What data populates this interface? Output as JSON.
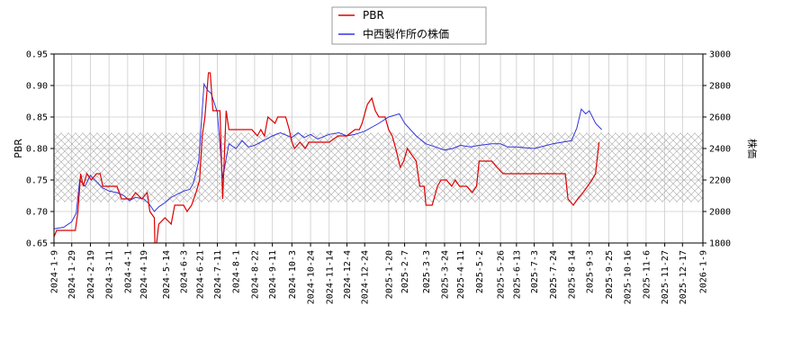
{
  "chart_data": {
    "type": "line",
    "legend_position": "top-center",
    "grid": true,
    "hatched_band": {
      "left_axis": [
        0.715,
        0.825
      ]
    },
    "left_axis": {
      "label": "PBR",
      "ylim": [
        0.65,
        0.95
      ],
      "ticks": [
        "0.65",
        "0.70",
        "0.75",
        "0.80",
        "0.85",
        "0.90",
        "0.95"
      ]
    },
    "right_axis": {
      "label": "株価",
      "ylim": [
        1800,
        3000
      ],
      "ticks": [
        "1800",
        "2000",
        "2200",
        "2400",
        "2600",
        "2800",
        "3000"
      ]
    },
    "x_axis": {
      "range": [
        "2024-01-09",
        "2026-01-09"
      ],
      "ticks": [
        "2024-1-9",
        "2024-1-29",
        "2024-2-19",
        "2024-3-11",
        "2024-4-1",
        "2024-4-19",
        "2024-5-14",
        "2024-6-3",
        "2024-6-21",
        "2024-7-11",
        "2024-8-1",
        "2024-8-22",
        "2024-9-11",
        "2024-10-3",
        "2024-10-24",
        "2024-11-14",
        "2024-12-4",
        "2024-12-24",
        "2025-1-20",
        "2025-2-7",
        "2025-3-3",
        "2025-3-24",
        "2025-4-11",
        "2025-5-2",
        "2025-5-26",
        "2025-6-13",
        "2025-7-3",
        "2025-7-24",
        "2025-8-14",
        "2025-9-3",
        "2025-9-25",
        "2025-10-16",
        "2025-11-6",
        "2025-11-27",
        "2025-12-17",
        "2026-1-9"
      ]
    },
    "series": [
      {
        "name": "PBR",
        "axis": "left",
        "color": "#dd0000",
        "points": [
          [
            "2024-01-09",
            0.66
          ],
          [
            "2024-01-12",
            0.67
          ],
          [
            "2024-01-20",
            0.67
          ],
          [
            "2024-02-02",
            0.67
          ],
          [
            "2024-02-05",
            0.7
          ],
          [
            "2024-02-08",
            0.76
          ],
          [
            "2024-02-11",
            0.74
          ],
          [
            "2024-02-15",
            0.76
          ],
          [
            "2024-02-20",
            0.75
          ],
          [
            "2024-02-26",
            0.76
          ],
          [
            "2024-03-01",
            0.76
          ],
          [
            "2024-03-04",
            0.74
          ],
          [
            "2024-03-12",
            0.74
          ],
          [
            "2024-03-20",
            0.74
          ],
          [
            "2024-03-25",
            0.72
          ],
          [
            "2024-04-01",
            0.72
          ],
          [
            "2024-04-05",
            0.72
          ],
          [
            "2024-04-10",
            0.73
          ],
          [
            "2024-04-17",
            0.72
          ],
          [
            "2024-04-23",
            0.73
          ],
          [
            "2024-04-26",
            0.7
          ],
          [
            "2024-05-01",
            0.69
          ],
          [
            "2024-05-02",
            0.63
          ],
          [
            "2024-05-06",
            0.68
          ],
          [
            "2024-05-13",
            0.69
          ],
          [
            "2024-05-20",
            0.68
          ],
          [
            "2024-05-24",
            0.71
          ],
          [
            "2024-06-03",
            0.71
          ],
          [
            "2024-06-07",
            0.7
          ],
          [
            "2024-06-12",
            0.71
          ],
          [
            "2024-06-17",
            0.73
          ],
          [
            "2024-06-21",
            0.75
          ],
          [
            "2024-06-24",
            0.82
          ],
          [
            "2024-06-27",
            0.85
          ],
          [
            "2024-07-01",
            0.92
          ],
          [
            "2024-07-03",
            0.92
          ],
          [
            "2024-07-06",
            0.86
          ],
          [
            "2024-07-14",
            0.86
          ],
          [
            "2024-07-17",
            0.72
          ],
          [
            "2024-07-21",
            0.86
          ],
          [
            "2024-07-24",
            0.83
          ],
          [
            "2024-08-05",
            0.83
          ],
          [
            "2024-08-19",
            0.83
          ],
          [
            "2024-08-25",
            0.82
          ],
          [
            "2024-08-29",
            0.83
          ],
          [
            "2024-09-02",
            0.82
          ],
          [
            "2024-09-06",
            0.85
          ],
          [
            "2024-09-14",
            0.84
          ],
          [
            "2024-09-17",
            0.85
          ],
          [
            "2024-09-26",
            0.85
          ],
          [
            "2024-09-30",
            0.83
          ],
          [
            "2024-10-03",
            0.81
          ],
          [
            "2024-10-06",
            0.8
          ],
          [
            "2024-10-12",
            0.81
          ],
          [
            "2024-10-18",
            0.8
          ],
          [
            "2024-10-22",
            0.81
          ],
          [
            "2024-10-30",
            0.81
          ],
          [
            "2024-11-14",
            0.81
          ],
          [
            "2024-11-24",
            0.82
          ],
          [
            "2024-12-04",
            0.82
          ],
          [
            "2024-12-13",
            0.83
          ],
          [
            "2024-12-18",
            0.83
          ],
          [
            "2024-12-21",
            0.84
          ],
          [
            "2024-12-27",
            0.87
          ],
          [
            "2025-01-01",
            0.88
          ],
          [
            "2025-01-05",
            0.86
          ],
          [
            "2025-01-09",
            0.85
          ],
          [
            "2025-01-16",
            0.85
          ],
          [
            "2025-01-20",
            0.83
          ],
          [
            "2025-01-24",
            0.82
          ],
          [
            "2025-01-28",
            0.8
          ],
          [
            "2025-02-02",
            0.77
          ],
          [
            "2025-02-06",
            0.78
          ],
          [
            "2025-02-10",
            0.8
          ],
          [
            "2025-02-15",
            0.79
          ],
          [
            "2025-02-20",
            0.78
          ],
          [
            "2025-02-24",
            0.74
          ],
          [
            "2025-03-01",
            0.74
          ],
          [
            "2025-03-03",
            0.71
          ],
          [
            "2025-03-10",
            0.71
          ],
          [
            "2025-03-16",
            0.74
          ],
          [
            "2025-03-20",
            0.75
          ],
          [
            "2025-03-26",
            0.75
          ],
          [
            "2025-04-01",
            0.74
          ],
          [
            "2025-04-05",
            0.75
          ],
          [
            "2025-04-10",
            0.74
          ],
          [
            "2025-04-18",
            0.74
          ],
          [
            "2025-04-24",
            0.73
          ],
          [
            "2025-04-29",
            0.74
          ],
          [
            "2025-05-02",
            0.78
          ],
          [
            "2025-05-16",
            0.78
          ],
          [
            "2025-05-22",
            0.77
          ],
          [
            "2025-05-29",
            0.76
          ],
          [
            "2025-06-13",
            0.76
          ],
          [
            "2025-07-03",
            0.76
          ],
          [
            "2025-07-24",
            0.76
          ],
          [
            "2025-08-07",
            0.76
          ],
          [
            "2025-08-10",
            0.72
          ],
          [
            "2025-08-16",
            0.71
          ],
          [
            "2025-08-21",
            0.72
          ],
          [
            "2025-08-27",
            0.73
          ],
          [
            "2025-09-01",
            0.74
          ],
          [
            "2025-09-06",
            0.75
          ],
          [
            "2025-09-10",
            0.76
          ],
          [
            "2025-09-14",
            0.81
          ]
        ]
      },
      {
        "name": "中西製作所の株価",
        "axis": "right",
        "color": "#3333dd",
        "points": [
          [
            "2024-01-09",
            1890
          ],
          [
            "2024-01-20",
            1900
          ],
          [
            "2024-01-29",
            1935
          ],
          [
            "2024-02-03",
            1990
          ],
          [
            "2024-02-07",
            2200
          ],
          [
            "2024-02-13",
            2160
          ],
          [
            "2024-02-19",
            2230
          ],
          [
            "2024-02-26",
            2190
          ],
          [
            "2024-03-04",
            2150
          ],
          [
            "2024-03-11",
            2130
          ],
          [
            "2024-03-20",
            2120
          ],
          [
            "2024-03-28",
            2100
          ],
          [
            "2024-04-03",
            2070
          ],
          [
            "2024-04-10",
            2090
          ],
          [
            "2024-04-19",
            2080
          ],
          [
            "2024-04-25",
            2050
          ],
          [
            "2024-05-01",
            2000
          ],
          [
            "2024-05-06",
            2030
          ],
          [
            "2024-05-14",
            2060
          ],
          [
            "2024-05-20",
            2090
          ],
          [
            "2024-05-27",
            2110
          ],
          [
            "2024-06-03",
            2130
          ],
          [
            "2024-06-10",
            2140
          ],
          [
            "2024-06-14",
            2180
          ],
          [
            "2024-06-20",
            2320
          ],
          [
            "2024-06-26",
            2810
          ],
          [
            "2024-06-30",
            2770
          ],
          [
            "2024-07-04",
            2750
          ],
          [
            "2024-07-11",
            2630
          ],
          [
            "2024-07-17",
            2210
          ],
          [
            "2024-07-24",
            2430
          ],
          [
            "2024-08-01",
            2400
          ],
          [
            "2024-08-08",
            2450
          ],
          [
            "2024-08-15",
            2410
          ],
          [
            "2024-08-22",
            2420
          ],
          [
            "2024-09-01",
            2450
          ],
          [
            "2024-09-11",
            2480
          ],
          [
            "2024-09-20",
            2500
          ],
          [
            "2024-10-03",
            2470
          ],
          [
            "2024-10-10",
            2500
          ],
          [
            "2024-10-17",
            2470
          ],
          [
            "2024-10-24",
            2490
          ],
          [
            "2024-11-01",
            2460
          ],
          [
            "2024-11-14",
            2490
          ],
          [
            "2024-11-25",
            2500
          ],
          [
            "2024-12-04",
            2480
          ],
          [
            "2024-12-13",
            2490
          ],
          [
            "2024-12-24",
            2510
          ],
          [
            "2025-01-09",
            2560
          ],
          [
            "2025-01-20",
            2600
          ],
          [
            "2025-02-01",
            2620
          ],
          [
            "2025-02-07",
            2560
          ],
          [
            "2025-02-20",
            2480
          ],
          [
            "2025-03-03",
            2430
          ],
          [
            "2025-03-14",
            2410
          ],
          [
            "2025-03-24",
            2390
          ],
          [
            "2025-04-02",
            2400
          ],
          [
            "2025-04-11",
            2420
          ],
          [
            "2025-04-22",
            2410
          ],
          [
            "2025-05-02",
            2420
          ],
          [
            "2025-05-16",
            2430
          ],
          [
            "2025-05-26",
            2430
          ],
          [
            "2025-06-03",
            2410
          ],
          [
            "2025-06-13",
            2410
          ],
          [
            "2025-07-03",
            2400
          ],
          [
            "2025-07-24",
            2430
          ],
          [
            "2025-08-14",
            2450
          ],
          [
            "2025-08-20",
            2530
          ],
          [
            "2025-08-25",
            2650
          ],
          [
            "2025-08-30",
            2620
          ],
          [
            "2025-09-03",
            2640
          ],
          [
            "2025-09-10",
            2560
          ],
          [
            "2025-09-17",
            2520
          ]
        ]
      }
    ]
  }
}
